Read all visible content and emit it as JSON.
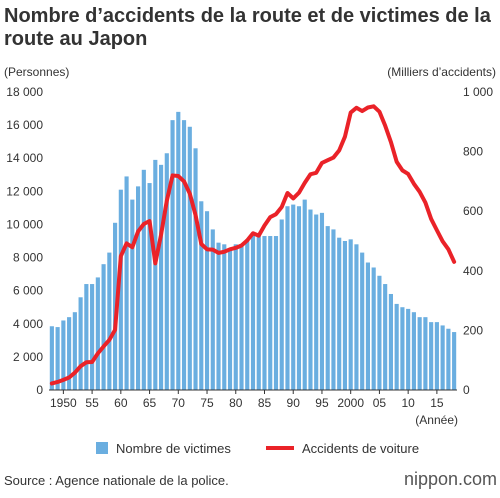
{
  "chart_data": {
    "type": "bar+line",
    "title_line1": "Nombre d’accidents de la route et de victimes de la",
    "title_line2": "route au Japon",
    "left_axis_unit": "(Personnes)",
    "right_axis_unit": "(Milliers d’accidents)",
    "x_unit": "(Année)",
    "left_ylim": [
      0,
      18000
    ],
    "right_ylim": [
      0,
      1000
    ],
    "left_ticks": [
      0,
      2000,
      4000,
      6000,
      8000,
      10000,
      12000,
      14000,
      16000,
      18000
    ],
    "left_tick_labels": [
      "0",
      "2 000",
      "4 000",
      "6 000",
      "8 000",
      "10 000",
      "12 000",
      "14 000",
      "16 000",
      "18 000"
    ],
    "right_ticks": [
      0,
      200,
      400,
      600,
      800,
      1000
    ],
    "right_tick_labels": [
      "0",
      "200",
      "400",
      "600",
      "800",
      "1 000"
    ],
    "x_tick_labels": [
      {
        "year": 1950,
        "label": "1950"
      },
      {
        "year": 1955,
        "label": "55"
      },
      {
        "year": 1960,
        "label": "60"
      },
      {
        "year": 1965,
        "label": "65"
      },
      {
        "year": 1970,
        "label": "70"
      },
      {
        "year": 1975,
        "label": "75"
      },
      {
        "year": 1980,
        "label": "80"
      },
      {
        "year": 1985,
        "label": "85"
      },
      {
        "year": 1990,
        "label": "90"
      },
      {
        "year": 1995,
        "label": "95"
      },
      {
        "year": 2000,
        "label": "2000"
      },
      {
        "year": 2005,
        "label": "05"
      },
      {
        "year": 2010,
        "label": "10"
      },
      {
        "year": 2015,
        "label": "15"
      }
    ],
    "x": [
      1948,
      1949,
      1950,
      1951,
      1952,
      1953,
      1954,
      1955,
      1956,
      1957,
      1958,
      1959,
      1960,
      1961,
      1962,
      1963,
      1964,
      1965,
      1966,
      1967,
      1968,
      1969,
      1970,
      1971,
      1972,
      1973,
      1974,
      1975,
      1976,
      1977,
      1978,
      1979,
      1980,
      1981,
      1982,
      1983,
      1984,
      1985,
      1986,
      1987,
      1988,
      1989,
      1990,
      1991,
      1992,
      1993,
      1994,
      1995,
      1996,
      1997,
      1998,
      1999,
      2000,
      2001,
      2002,
      2003,
      2004,
      2005,
      2006,
      2007,
      2008,
      2009,
      2010,
      2011,
      2012,
      2013,
      2014,
      2015,
      2016,
      2017,
      2018
    ],
    "series": [
      {
        "name": "Nombre de victimes",
        "axis": "left",
        "kind": "bar",
        "color": "#6aaee0",
        "values": [
          3850,
          3800,
          4200,
          4400,
          4700,
          5600,
          6400,
          6400,
          6800,
          7600,
          8300,
          10100,
          12100,
          12900,
          11500,
          12300,
          13300,
          12500,
          13900,
          13600,
          14300,
          16300,
          16800,
          16300,
          15900,
          14600,
          11400,
          10800,
          9700,
          8900,
          8800,
          8500,
          8800,
          8800,
          9100,
          9500,
          9300,
          9300,
          9300,
          9300,
          10300,
          11100,
          11200,
          11100,
          11500,
          10900,
          10600,
          10700,
          9900,
          9700,
          9200,
          9000,
          9100,
          8800,
          8300,
          7700,
          7400,
          6900,
          6400,
          5800,
          5200,
          5000,
          4900,
          4700,
          4400,
          4400,
          4100,
          4100,
          3900,
          3700,
          3500
        ]
      },
      {
        "name": "Accidents de voiture",
        "axis": "right",
        "kind": "line",
        "color": "#ea2228",
        "values": [
          22,
          27,
          34,
          42,
          58,
          80,
          93,
          94,
          123,
          146,
          168,
          202,
          449,
          492,
          479,
          532,
          557,
          567,
          425,
          521,
          635,
          720,
          718,
          700,
          659,
          587,
          490,
          472,
          471,
          460,
          464,
          472,
          477,
          485,
          502,
          526,
          518,
          552,
          580,
          590,
          614,
          661,
          643,
          662,
          695,
          724,
          729,
          762,
          771,
          780,
          804,
          850,
          931,
          947,
          936,
          948,
          952,
          934,
          887,
          832,
          766,
          737,
          725,
          692,
          665,
          629,
          574,
          536,
          499,
          472,
          430
        ]
      }
    ],
    "legend": [
      {
        "label": "Nombre de victimes",
        "symbol": "square",
        "color": "#6aaee0"
      },
      {
        "label": "Accidents de voiture",
        "symbol": "line",
        "color": "#ea2228"
      }
    ],
    "legend_position": "bottom",
    "grid": false
  },
  "footer": {
    "source": "Source : Agence nationale de la police.",
    "brand": "nippon.com"
  }
}
